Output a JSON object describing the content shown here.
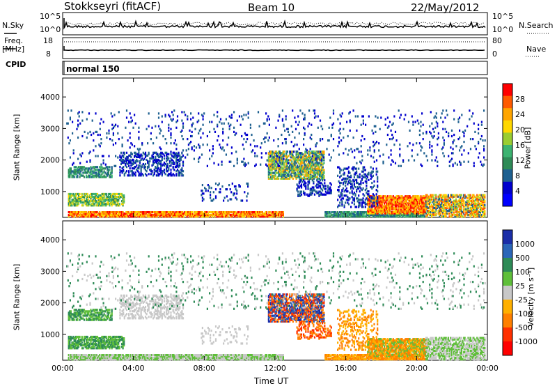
{
  "header": {
    "station": "Stokkseyri (fitACF)",
    "beam": "Beam 10",
    "date": "22/May/2012"
  },
  "left_labels": {
    "nsky": "N.Sky",
    "freq": "Freq.",
    "freq_unit": "[MHz]",
    "cpid": "CPID"
  },
  "right_labels": {
    "nsearch": "N.Search",
    "nave": "Nave"
  },
  "cpid_text": "normal 150",
  "noise_panel": {
    "ticks_left": [
      "10^5",
      "10^0"
    ],
    "ticks_right": [
      "10^5",
      "10^0"
    ]
  },
  "freq_panel": {
    "ticks_left": [
      "18",
      "8"
    ],
    "ticks_right": [
      "80",
      "0"
    ]
  },
  "colors": {
    "sky_line": "#000000",
    "dotted": "#000000"
  },
  "chart_data": [
    {
      "type": "heatmap",
      "name": "Power",
      "ylabel": "Slant Range [km]",
      "xlabel": "",
      "yticks": [
        "1000",
        "2000",
        "3000",
        "4000"
      ],
      "ylim": [
        180,
        4600
      ],
      "xlim": [
        0,
        24
      ],
      "colorbar": {
        "label": "Power [dB]",
        "ticks": [
          "28",
          "24",
          "20",
          "16",
          "12",
          "8",
          "4"
        ],
        "colors": [
          "#ff0000",
          "#ff5a00",
          "#ffa500",
          "#ffd800",
          "#9acd32",
          "#3cb371",
          "#2e8b57",
          "#1e6090",
          "#0000cd",
          "#0000ff"
        ]
      }
    },
    {
      "type": "heatmap",
      "name": "Velocity",
      "ylabel": "Slant Range [km]",
      "xlabel": "Time UT",
      "yticks": [
        "1000",
        "2000",
        "3000",
        "4000"
      ],
      "ylim": [
        180,
        4600
      ],
      "xlim": [
        0,
        24
      ],
      "xticks": [
        "00:00",
        "04:00",
        "08:00",
        "12:00",
        "16:00",
        "20:00",
        "00:00"
      ],
      "colorbar": {
        "label": "Velocity [m s⁻¹]",
        "ticks": [
          "1000",
          "500",
          "100",
          "25",
          "-25",
          "-100",
          "-500",
          "-1000"
        ],
        "colors": [
          "#1b2ea8",
          "#2b66b8",
          "#2e8b57",
          "#5fbf3a",
          "#c8c8c8",
          "#ffb000",
          "#ff8000",
          "#ff3000",
          "#ff0000"
        ]
      }
    }
  ]
}
